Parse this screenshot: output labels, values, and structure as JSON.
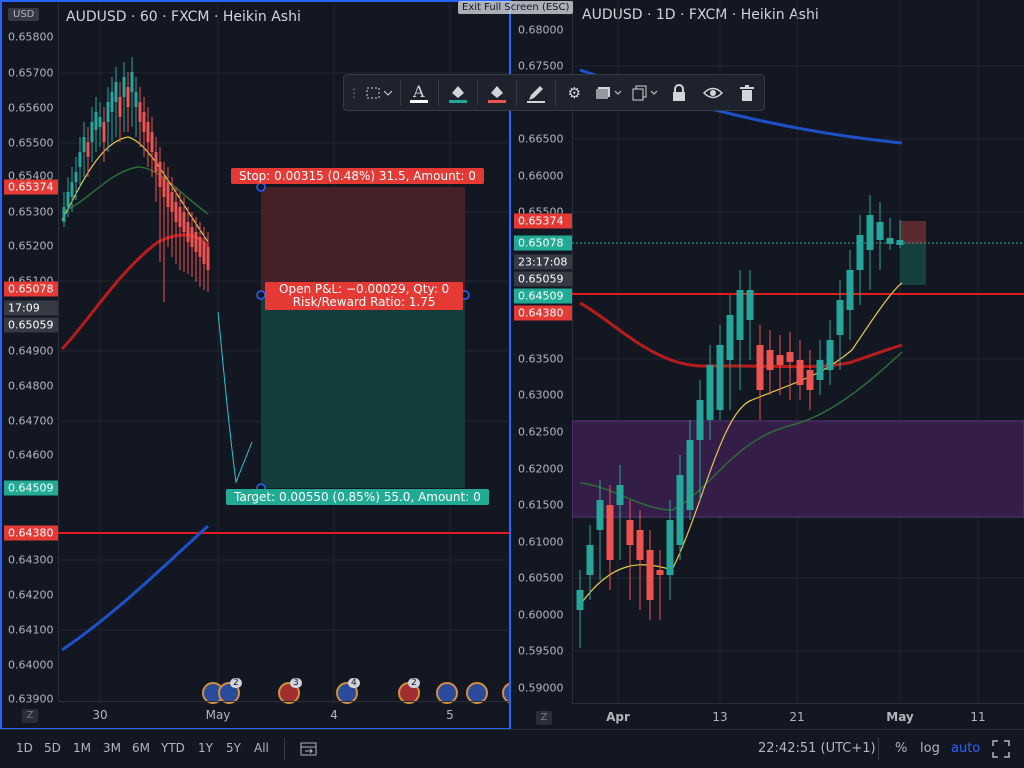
{
  "fullscreen_hint": "Exit Full Screen (ESC)",
  "left": {
    "title": "AUDUSD · 60 · FXCM · Heikin Ashi",
    "currency": "USD",
    "price_ticks": [
      "0.65800",
      "0.65700",
      "0.65600",
      "0.65500",
      "0.65400",
      "0.65300",
      "0.65200",
      "0.65100",
      "0.64900",
      "0.64800",
      "0.64700",
      "0.64600",
      "0.64300",
      "0.64200",
      "0.64100",
      "0.64000",
      "0.63900"
    ],
    "tags": {
      "stop": "0.65374",
      "current": "0.65078",
      "countdown": "17:09",
      "entry": "0.65059",
      "target": "0.64509",
      "line": "0.64380"
    },
    "x_labels": [
      "30",
      "May",
      "4",
      "5"
    ],
    "z": "Z",
    "stop_label": "Stop: 0.00315 (0.48%) 31.5, Amount: 0",
    "pnl_label_1": "Open P&L: −0.00029, Qty: 0",
    "pnl_label_2": "Risk/Reward Ratio: 1.75",
    "target_label": "Target: 0.00550 (0.85%) 55.0, Amount: 0",
    "events": [
      "2",
      "3",
      "4",
      "2"
    ]
  },
  "right": {
    "title": "AUDUSD · 1D · FXCM · Heikin Ashi",
    "price_ticks": [
      "0.68000",
      "0.67500",
      "0.66500",
      "0.66000",
      "0.65500",
      "0.63500",
      "0.63000",
      "0.62500",
      "0.62000",
      "0.61500",
      "0.61000",
      "0.60500",
      "0.60000",
      "0.59500",
      "0.59000"
    ],
    "tags": {
      "stop": "0.65374",
      "current": "0.65078",
      "countdown": "23:17:08",
      "entry": "0.65059",
      "target": "0.64509",
      "line": "0.64380"
    },
    "x_labels": [
      "Apr",
      "13",
      "21",
      "May",
      "11"
    ],
    "z": "Z"
  },
  "toolbar": {
    "icons": [
      "drag-handle-icon",
      "line-style-icon",
      "text-color-icon",
      "fill-color-icon",
      "background-color-icon",
      "pencil-icon",
      "gear-icon",
      "layers-icon",
      "clone-icon",
      "lock-icon",
      "eye-icon",
      "trash-icon"
    ]
  },
  "bottom": {
    "timeframes": [
      "1D",
      "5D",
      "1M",
      "3M",
      "6M",
      "YTD",
      "1Y",
      "5Y",
      "All"
    ],
    "clock": "22:42:51 (UTC+1)",
    "percent": "%",
    "log": "log",
    "auto": "auto"
  },
  "colors": {
    "up": "#26a69a",
    "down": "#ef5350",
    "ma_red": "#c62828",
    "ma_blue": "#1e50c8",
    "ma_yellow": "#e6c84a",
    "ma_green": "#2e6b3a"
  }
}
